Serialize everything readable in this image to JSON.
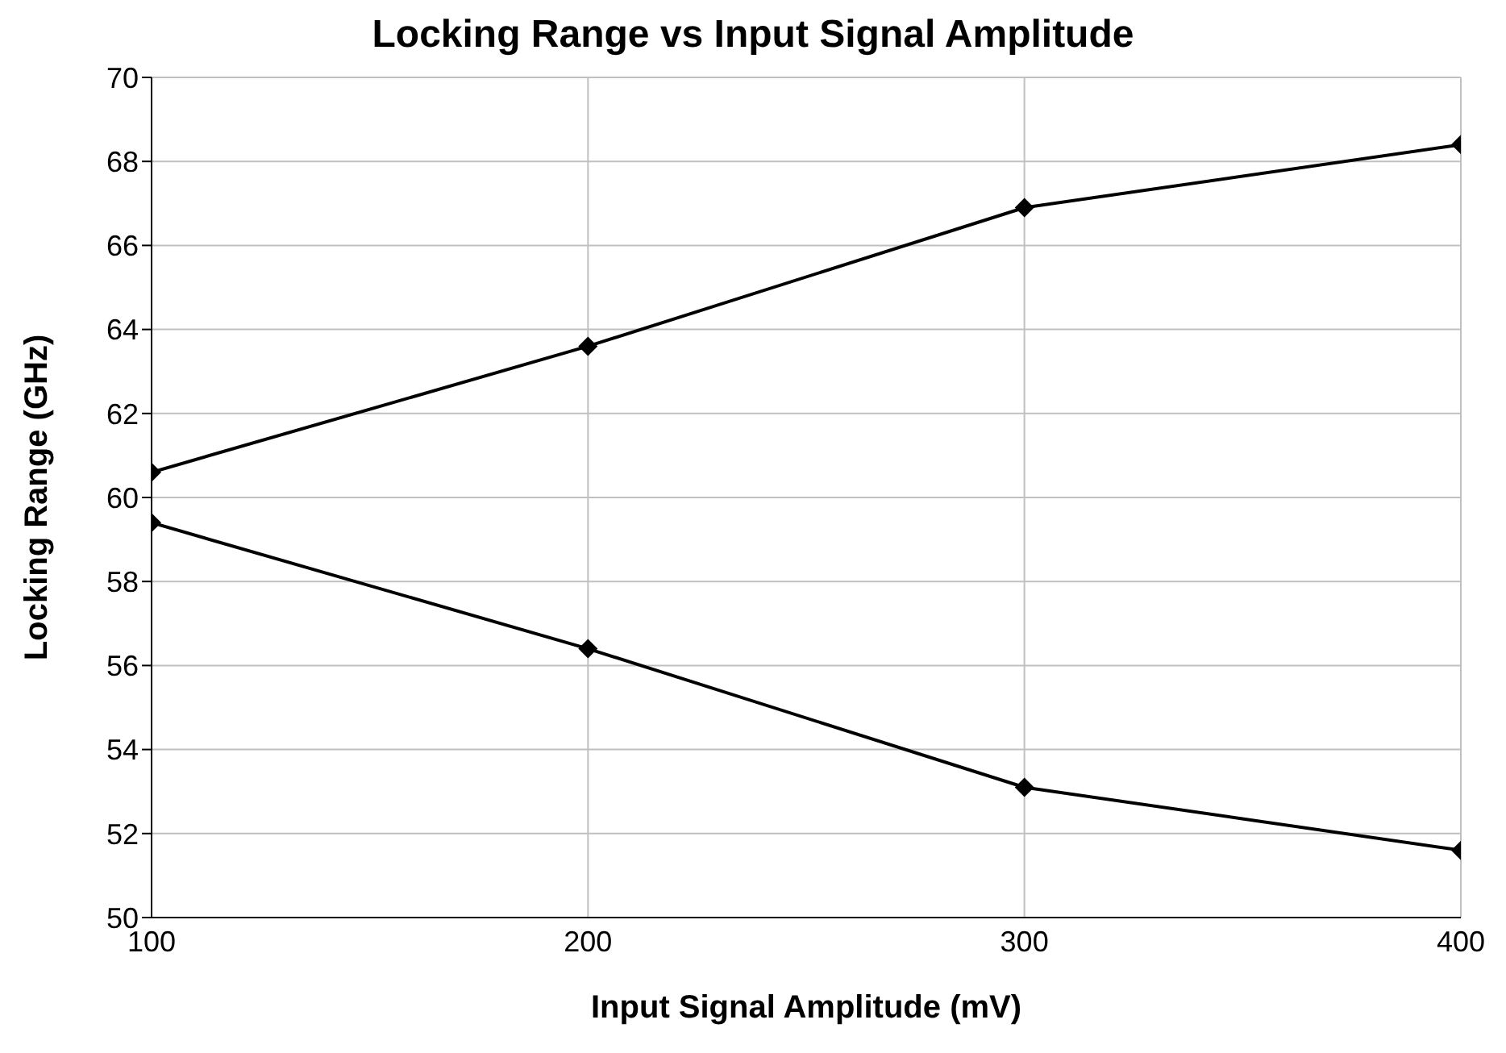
{
  "chart_data": {
    "type": "line",
    "title": "Locking Range vs Input Signal Amplitude",
    "xlabel": "Input Signal Amplitude (mV)",
    "ylabel": "Locking Range (GHz)",
    "x": [
      100,
      200,
      300,
      400
    ],
    "series": [
      {
        "color": "#000000",
        "values": [
          60.6,
          63.6,
          66.9,
          68.4
        ]
      },
      {
        "color": "#000000",
        "values": [
          59.4,
          56.4,
          53.1,
          51.6
        ]
      }
    ],
    "xlim": [
      100,
      400
    ],
    "xticks": [
      100,
      200,
      300,
      400
    ],
    "ylim": [
      50,
      70
    ],
    "yticks": [
      50,
      52,
      54,
      56,
      58,
      60,
      62,
      64,
      66,
      68,
      70
    ],
    "grid": true,
    "marker": "diamond",
    "line_style": "solid",
    "legend": false
  }
}
